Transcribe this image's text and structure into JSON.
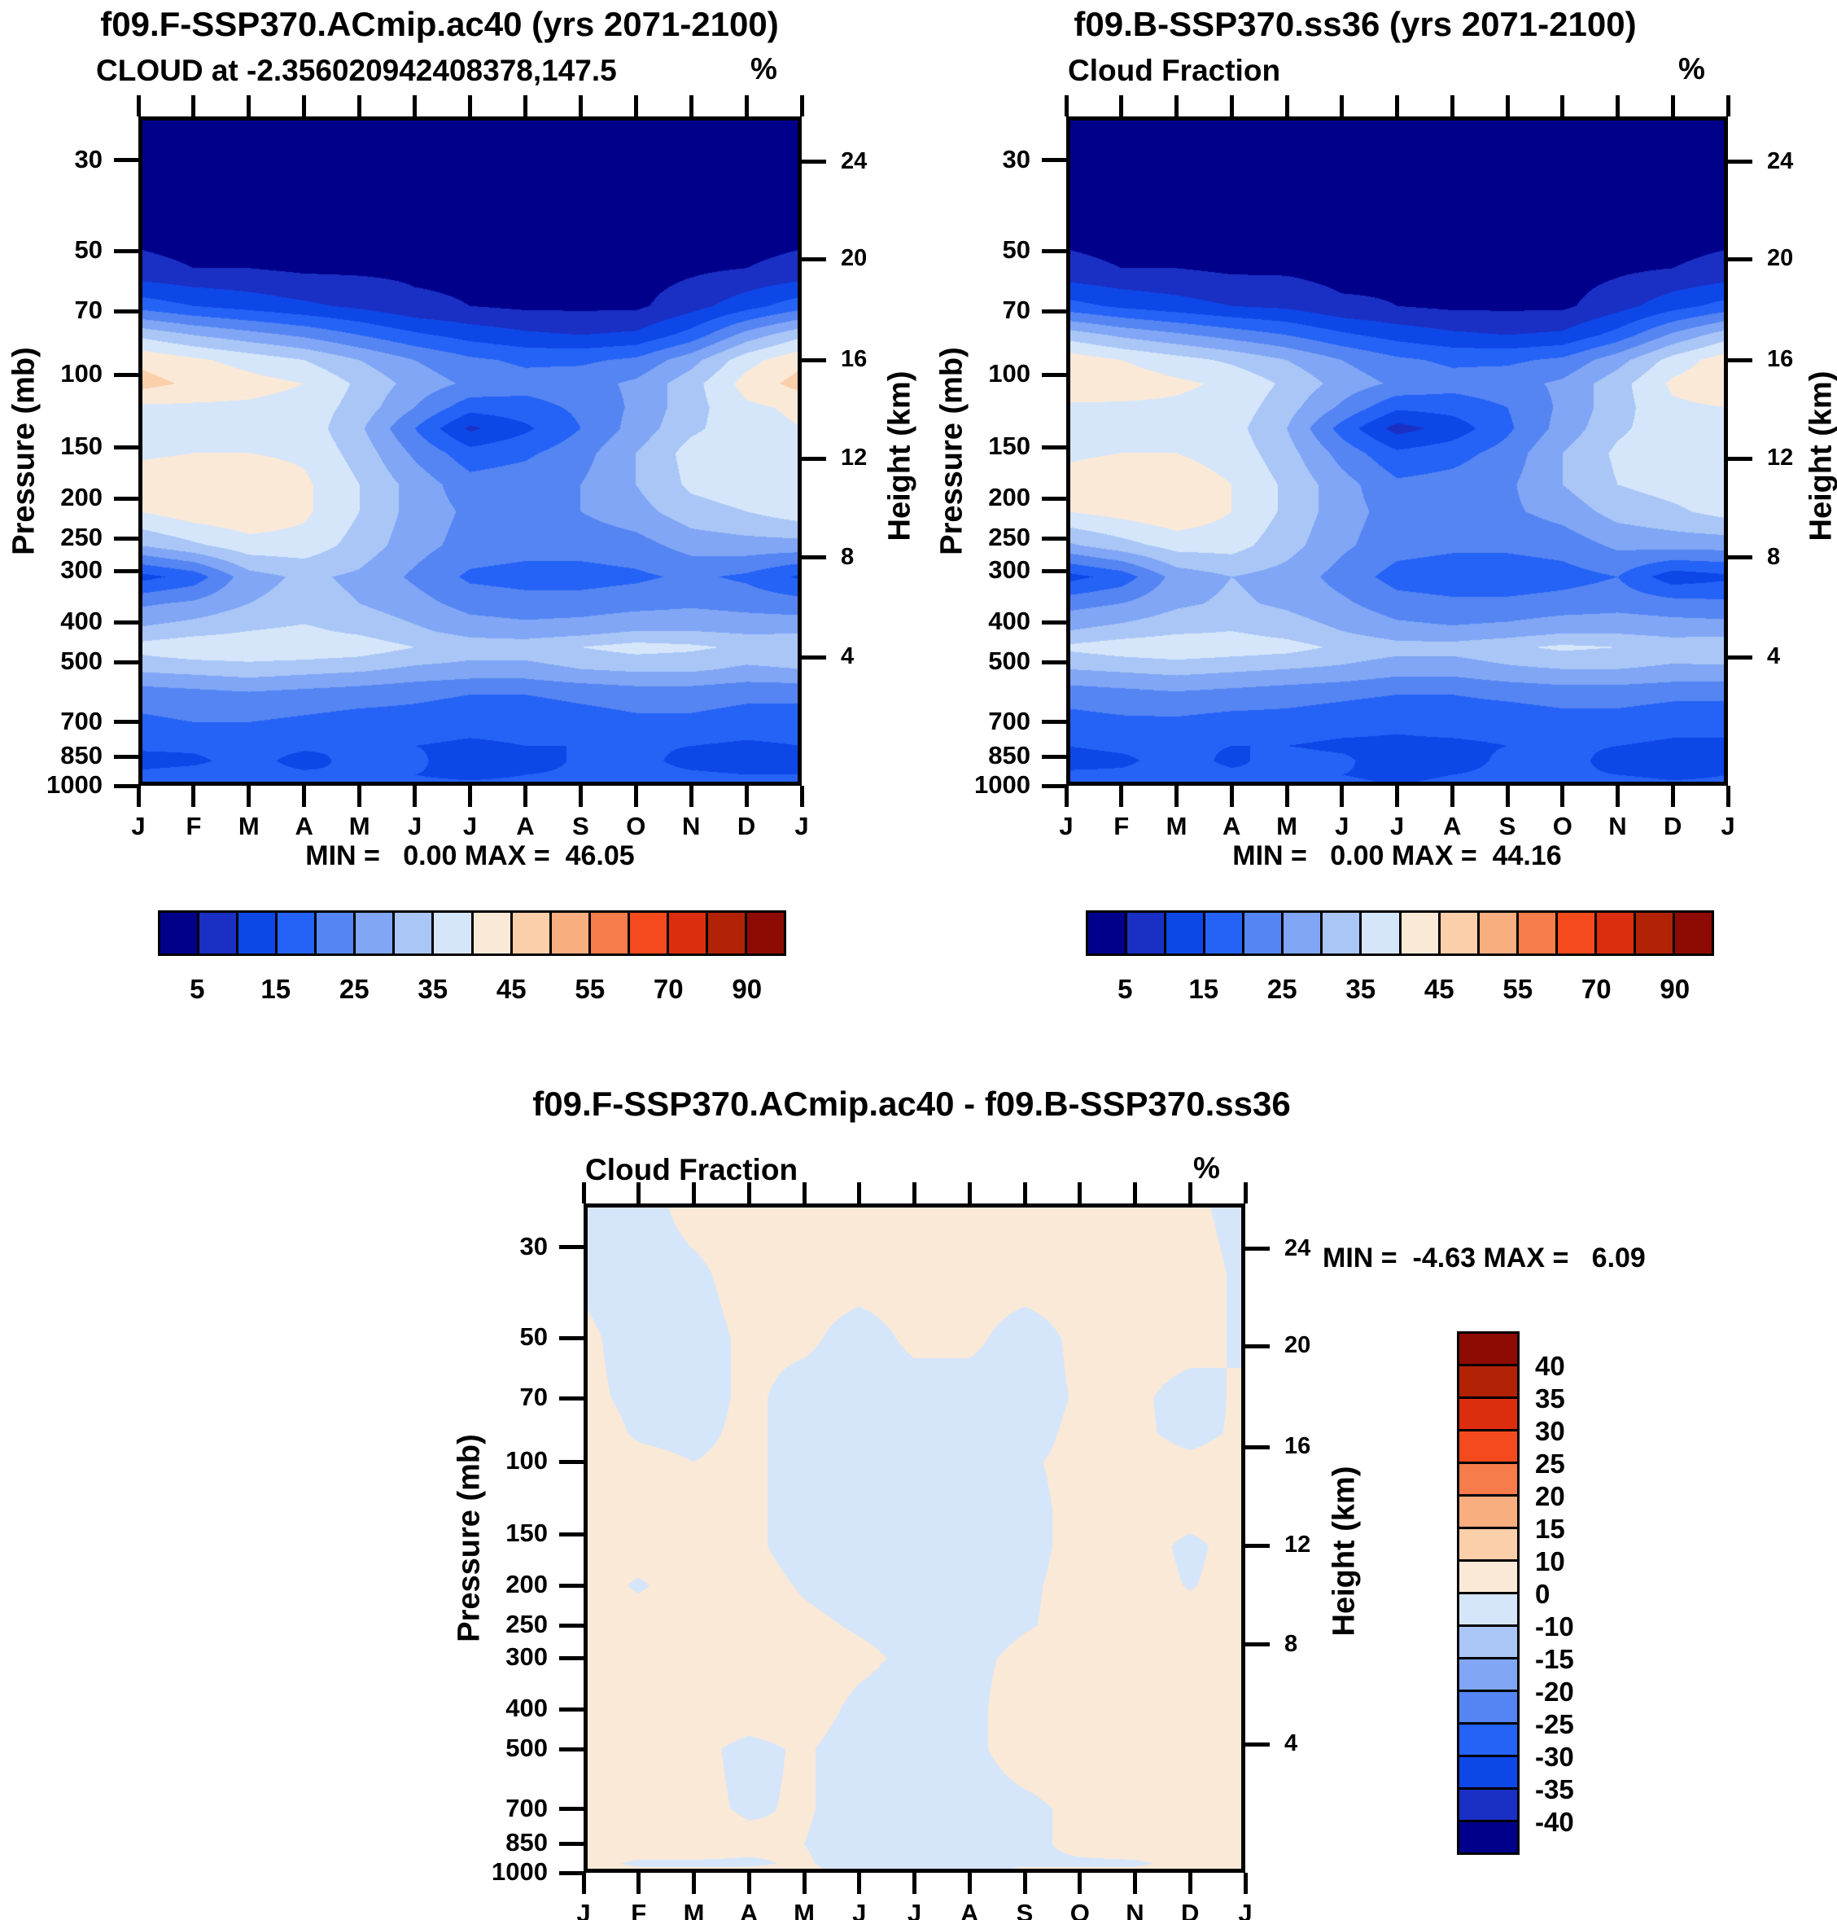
{
  "page": {
    "background": "#ffffff"
  },
  "colors": {
    "frame": "#000000",
    "text": "#000000",
    "contour_palette": [
      "#00008B",
      "#1A2FC4",
      "#0D47E8",
      "#2563F7",
      "#5585F2",
      "#80A6F5",
      "#A9C6F7",
      "#D6E6FA",
      "#FBE9D7",
      "#FBCFAA",
      "#F9AE80",
      "#F77C4B",
      "#F44A1E",
      "#DC2D0E",
      "#B22205",
      "#8E0B03"
    ]
  },
  "chart_data": [
    {
      "id": "model-a-panel",
      "type": "heatmap",
      "title": "f09.F-SSP370.ACmip.ac40 (yrs 2071-2100)",
      "subtitle": "CLOUD at -2.356020942408378,147.5",
      "unit": "%",
      "ylabel": "Pressure (mb)",
      "ylabel_right": "Height (km)",
      "stats": "MIN =   0.00 MAX =  46.05",
      "min": 0.0,
      "max": 46.05,
      "months": [
        "J",
        "F",
        "M",
        "A",
        "M",
        "J",
        "J",
        "A",
        "S",
        "O",
        "N",
        "D",
        "J"
      ],
      "pressure_ticks": [
        30,
        50,
        70,
        100,
        150,
        200,
        250,
        300,
        400,
        500,
        700,
        850,
        1000
      ],
      "height_ticks": [
        24,
        20,
        16,
        12,
        8,
        4
      ],
      "height_tick_fractions": [
        0.068,
        0.213,
        0.364,
        0.511,
        0.659,
        0.808
      ],
      "p_top": 23.5,
      "p_bottom": 1000,
      "levels": [
        5,
        10,
        15,
        20,
        25,
        30,
        35,
        40,
        45,
        50,
        55,
        60,
        70,
        80,
        90
      ],
      "colorbar_labels": [
        5,
        15,
        25,
        35,
        45,
        55,
        70,
        90
      ],
      "colorbar_label_boundaries": [
        1,
        3,
        5,
        7,
        9,
        11,
        13,
        15
      ],
      "grid_pressures": [
        23,
        40,
        55,
        68,
        80,
        92,
        105,
        120,
        135,
        155,
        185,
        215,
        260,
        310,
        360,
        420,
        460,
        520,
        600,
        700,
        800,
        870,
        940,
        1000
      ],
      "grid_values": [
        [
          2,
          2,
          2,
          2,
          2,
          2,
          2,
          2,
          2,
          2,
          2,
          2,
          2
        ],
        [
          3,
          3,
          3,
          3,
          3,
          3,
          3,
          3,
          3,
          3,
          3,
          3,
          3
        ],
        [
          6,
          5,
          5,
          4,
          4,
          4,
          4,
          4,
          3,
          3,
          4,
          5,
          6
        ],
        [
          18,
          15,
          13,
          11,
          9,
          6,
          5,
          4,
          4,
          4,
          8,
          13,
          18
        ],
        [
          34,
          30,
          27,
          24,
          20,
          16,
          13,
          11,
          10,
          11,
          17,
          27,
          34
        ],
        [
          44,
          41,
          38,
          35,
          30,
          25,
          21,
          19,
          19,
          21,
          28,
          38,
          44
        ],
        [
          47,
          44,
          42,
          40,
          34,
          28,
          24,
          22,
          23,
          26,
          33,
          42,
          47
        ],
        [
          39,
          39,
          39,
          38,
          33,
          25,
          17,
          18,
          21,
          26,
          33,
          39,
          41
        ],
        [
          38,
          39,
          39,
          38,
          31,
          20,
          9,
          14,
          20,
          27,
          34,
          38,
          40
        ],
        [
          39,
          40,
          40,
          39,
          33,
          24,
          17,
          19,
          23,
          30,
          37,
          38,
          40
        ],
        [
          43,
          44,
          44,
          41,
          35,
          28,
          22,
          23,
          25,
          30,
          36,
          38,
          40
        ],
        [
          40,
          43,
          44,
          41,
          35,
          28,
          24,
          24,
          25,
          28,
          33,
          35,
          38
        ],
        [
          30,
          34,
          38,
          38,
          33,
          27,
          23,
          22,
          22,
          23,
          27,
          28,
          28
        ],
        [
          13,
          17,
          28,
          31,
          29,
          24,
          19,
          18,
          18,
          19,
          21,
          19,
          14
        ],
        [
          24,
          26,
          30,
          32,
          30,
          27,
          23,
          22,
          22,
          23,
          24,
          23,
          22
        ],
        [
          31,
          33,
          35,
          36,
          34,
          31,
          28,
          27,
          28,
          30,
          30,
          29,
          29
        ],
        [
          37,
          39,
          39,
          39,
          38,
          35,
          33,
          33,
          35,
          37,
          36,
          34,
          35
        ],
        [
          31,
          32,
          33,
          32,
          31,
          29,
          28,
          28,
          30,
          31,
          31,
          29,
          30
        ],
        [
          22,
          23,
          24,
          23,
          22,
          21,
          20,
          20,
          21,
          22,
          22,
          21,
          21
        ],
        [
          19,
          20,
          20,
          19,
          18,
          18,
          17,
          17,
          18,
          19,
          19,
          18,
          18
        ],
        [
          16,
          16,
          17,
          16,
          15,
          15,
          14,
          15,
          15,
          16,
          15,
          14,
          15
        ],
        [
          13,
          14,
          17,
          13,
          17,
          16,
          12,
          12,
          16,
          17,
          13,
          12,
          13
        ],
        [
          16,
          17,
          17,
          16,
          15,
          15,
          14,
          15,
          16,
          17,
          16,
          15,
          15
        ],
        [
          17,
          18,
          18,
          17,
          17,
          16,
          16,
          16,
          17,
          18,
          17,
          16,
          17
        ]
      ]
    },
    {
      "id": "model-b-panel",
      "type": "heatmap",
      "title": "f09.B-SSP370.ss36 (yrs 2071-2100)",
      "subtitle": "Cloud Fraction",
      "unit": "%",
      "ylabel": "Pressure (mb)",
      "ylabel_right": "Height (km)",
      "stats": "MIN =   0.00 MAX =  44.16",
      "min": 0.0,
      "max": 44.16,
      "months": [
        "J",
        "F",
        "M",
        "A",
        "M",
        "J",
        "J",
        "A",
        "S",
        "O",
        "N",
        "D",
        "J"
      ],
      "pressure_ticks": [
        30,
        50,
        70,
        100,
        150,
        200,
        250,
        300,
        400,
        500,
        700,
        850,
        1000
      ],
      "height_ticks": [
        24,
        20,
        16,
        12,
        8,
        4
      ],
      "height_tick_fractions": [
        0.068,
        0.213,
        0.364,
        0.511,
        0.659,
        0.808
      ],
      "p_top": 23.5,
      "p_bottom": 1000,
      "levels": [
        5,
        10,
        15,
        20,
        25,
        30,
        35,
        40,
        45,
        50,
        55,
        60,
        70,
        80,
        90
      ],
      "colorbar_labels": [
        5,
        15,
        25,
        35,
        45,
        55,
        70,
        90
      ],
      "colorbar_label_boundaries": [
        1,
        3,
        5,
        7,
        9,
        11,
        13,
        15
      ],
      "grid_pressures": [
        23,
        40,
        55,
        68,
        80,
        92,
        105,
        120,
        135,
        155,
        185,
        215,
        260,
        310,
        360,
        420,
        460,
        520,
        600,
        700,
        800,
        870,
        940,
        1000
      ],
      "grid_values": [
        [
          2,
          2,
          2,
          2,
          2,
          2,
          2,
          2,
          2,
          2,
          2,
          2,
          2
        ],
        [
          3,
          3,
          3,
          3,
          3,
          3,
          3,
          3,
          3,
          3,
          3,
          3,
          3
        ],
        [
          6,
          5,
          5,
          4,
          4,
          3,
          4,
          4,
          3,
          3,
          4,
          5,
          6
        ],
        [
          17,
          14,
          12,
          10,
          9,
          6,
          5,
          4,
          4,
          4,
          8,
          13,
          17
        ],
        [
          33,
          29,
          26,
          23,
          20,
          16,
          13,
          11,
          10,
          11,
          17,
          26,
          33
        ],
        [
          43,
          40,
          37,
          34,
          30,
          25,
          21,
          19,
          19,
          21,
          28,
          37,
          43
        ],
        [
          44,
          43,
          41,
          39,
          34,
          28,
          24,
          22,
          23,
          26,
          33,
          41,
          44
        ],
        [
          39,
          39,
          39,
          38,
          32,
          24,
          16,
          17,
          20,
          26,
          33,
          39,
          40
        ],
        [
          38,
          39,
          39,
          37,
          30,
          18,
          8,
          12,
          19,
          27,
          34,
          38,
          39
        ],
        [
          39,
          40,
          40,
          38,
          32,
          23,
          16,
          18,
          22,
          30,
          36,
          38,
          39
        ],
        [
          42,
          44,
          43,
          40,
          34,
          27,
          21,
          22,
          24,
          30,
          35,
          37,
          39
        ],
        [
          40,
          42,
          44,
          40,
          34,
          27,
          23,
          23,
          24,
          27,
          32,
          34,
          37
        ],
        [
          29,
          33,
          37,
          37,
          32,
          26,
          22,
          21,
          21,
          22,
          26,
          27,
          27
        ],
        [
          13,
          17,
          27,
          30,
          28,
          23,
          18,
          17,
          17,
          18,
          20,
          12,
          14
        ],
        [
          23,
          25,
          29,
          31,
          29,
          26,
          22,
          21,
          21,
          22,
          23,
          22,
          21
        ],
        [
          30,
          32,
          34,
          35,
          33,
          30,
          27,
          26,
          27,
          29,
          29,
          28,
          28
        ],
        [
          36,
          38,
          39,
          38,
          37,
          34,
          32,
          32,
          34,
          36,
          35,
          33,
          34
        ],
        [
          30,
          31,
          32,
          31,
          30,
          29,
          27,
          27,
          29,
          30,
          30,
          29,
          29
        ],
        [
          22,
          23,
          24,
          23,
          22,
          21,
          20,
          20,
          21,
          22,
          22,
          21,
          21
        ],
        [
          18,
          19,
          19,
          18,
          18,
          17,
          16,
          17,
          17,
          18,
          18,
          17,
          17
        ],
        [
          15,
          16,
          16,
          15,
          15,
          14,
          14,
          14,
          15,
          16,
          15,
          14,
          14
        ],
        [
          13,
          14,
          17,
          14,
          17,
          16,
          12,
          13,
          16,
          17,
          13,
          12,
          13
        ],
        [
          16,
          16,
          17,
          16,
          15,
          15,
          14,
          15,
          16,
          16,
          15,
          14,
          15
        ],
        [
          17,
          17,
          18,
          17,
          16,
          16,
          15,
          16,
          17,
          17,
          17,
          16,
          16
        ]
      ]
    },
    {
      "id": "difference-panel",
      "type": "heatmap",
      "title": "f09.F-SSP370.ACmip.ac40 - f09.B-SSP370.ss36",
      "subtitle": "Cloud Fraction",
      "unit": "%",
      "ylabel": "Pressure (mb)",
      "ylabel_right": "Height (km)",
      "stats": "MIN =  -4.63 MAX =   6.09",
      "min": -4.63,
      "max": 6.09,
      "months": [
        "J",
        "F",
        "M",
        "A",
        "M",
        "J",
        "J",
        "A",
        "S",
        "O",
        "N",
        "D",
        "J"
      ],
      "pressure_ticks": [
        30,
        50,
        70,
        100,
        150,
        200,
        250,
        300,
        400,
        500,
        700,
        850,
        1000
      ],
      "height_ticks": [
        24,
        20,
        16,
        12,
        8,
        4
      ],
      "height_tick_fractions": [
        0.068,
        0.213,
        0.364,
        0.511,
        0.659,
        0.808
      ],
      "p_top": 23.5,
      "p_bottom": 1000,
      "levels": [
        -40,
        -35,
        -30,
        -25,
        -20,
        -15,
        -10,
        0,
        10,
        15,
        20,
        25,
        30,
        35,
        40
      ],
      "colorbar_labels": [
        40,
        35,
        30,
        25,
        20,
        15,
        10,
        0,
        -10,
        -15,
        -20,
        -25,
        -30,
        -35,
        -40
      ],
      "colorbar_label_boundaries": [
        1,
        2,
        3,
        4,
        5,
        6,
        7,
        8,
        9,
        10,
        11,
        12,
        13,
        14,
        15
      ],
      "grid_pressures": [
        23,
        35,
        50,
        70,
        85,
        100,
        130,
        160,
        200,
        250,
        300,
        400,
        500,
        700,
        850,
        950,
        1000
      ],
      "grid_values": [
        [
          -2,
          -2,
          2,
          2,
          2,
          2,
          2,
          2,
          2,
          2,
          2,
          1,
          -2
        ],
        [
          -1,
          -2,
          -1,
          2,
          2,
          2,
          2,
          2,
          2,
          2,
          2,
          2,
          -1
        ],
        [
          1,
          -2,
          -2,
          1,
          1,
          -2,
          1,
          1,
          -2,
          1,
          2,
          2,
          -1
        ],
        [
          1,
          -1,
          -2,
          1,
          -2,
          -2,
          -2,
          -2,
          -2,
          0.5,
          1,
          -2,
          1
        ],
        [
          2,
          -0.5,
          -1,
          1,
          -2,
          -2,
          -2,
          -2,
          -1.5,
          1,
          1,
          -1.5,
          1
        ],
        [
          2,
          1,
          0,
          1,
          -2,
          -2,
          -2,
          -2,
          -0.5,
          1,
          2,
          1,
          2
        ],
        [
          2,
          2,
          2,
          1,
          -2,
          -2,
          -2,
          -2,
          -1,
          1,
          2,
          2,
          2
        ],
        [
          2,
          2,
          2,
          1,
          -2,
          -2,
          -2,
          -2,
          -1,
          1,
          2,
          -1,
          2
        ],
        [
          2,
          -0.5,
          2,
          2,
          -0.5,
          -2,
          -2,
          -2,
          -0.5,
          1,
          2,
          -0.3,
          2
        ],
        [
          2,
          2,
          2,
          2,
          1,
          -0.5,
          -2,
          -2,
          -0.3,
          1,
          2,
          2,
          2
        ],
        [
          2,
          2,
          2,
          2,
          2,
          1,
          -1,
          -1,
          1,
          1,
          2,
          2,
          2
        ],
        [
          2,
          2,
          2,
          2,
          2,
          -1,
          -2,
          -1,
          2,
          2,
          2,
          2,
          2
        ],
        [
          2,
          2,
          1,
          -1,
          0.5,
          -2,
          -2,
          -1,
          2,
          2,
          2,
          2,
          2
        ],
        [
          2,
          2,
          1,
          -0.5,
          0.5,
          -2,
          -2,
          -2,
          -1,
          1,
          2,
          2,
          2
        ],
        [
          2,
          2,
          2,
          1,
          0,
          -2,
          -2,
          -2,
          -1,
          1,
          2,
          2,
          2
        ],
        [
          1,
          -0.5,
          -0.5,
          -0.5,
          0.5,
          -2,
          -2,
          -1,
          -0.5,
          -0.5,
          -0.5,
          1,
          2
        ],
        [
          2,
          1,
          1,
          1,
          1,
          -1,
          -2,
          -1,
          1,
          1,
          1,
          1,
          2
        ]
      ]
    }
  ]
}
